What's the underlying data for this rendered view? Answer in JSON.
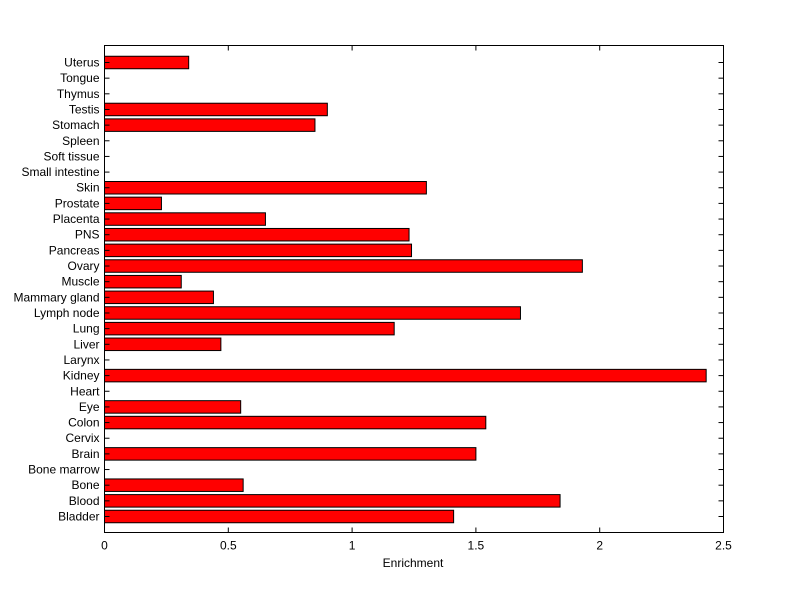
{
  "chart_data": {
    "type": "bar",
    "orientation": "horizontal",
    "categories": [
      "Bladder",
      "Blood",
      "Bone",
      "Bone marrow",
      "Brain",
      "Cervix",
      "Colon",
      "Eye",
      "Heart",
      "Kidney",
      "Larynx",
      "Liver",
      "Lung",
      "Lymph node",
      "Mammary gland",
      "Muscle",
      "Ovary",
      "Pancreas",
      "PNS",
      "Placenta",
      "Prostate",
      "Skin",
      "Small intestine",
      "Soft tissue",
      "Spleen",
      "Stomach",
      "Testis",
      "Thymus",
      "Tongue",
      "Uterus"
    ],
    "values": [
      1.41,
      1.84,
      0.56,
      0,
      1.5,
      0,
      1.54,
      0.55,
      0,
      2.43,
      0,
      0.47,
      1.17,
      1.68,
      0.44,
      0.31,
      1.93,
      1.24,
      1.23,
      0.65,
      0.23,
      1.3,
      0,
      0,
      0,
      0.85,
      0.9,
      0,
      0,
      0.34
    ],
    "xlabel": "Enrichment",
    "ylabel": "",
    "title": "",
    "xlim": [
      0,
      2.5
    ],
    "xticks": [
      0,
      0.5,
      1,
      1.5,
      2,
      2.5
    ],
    "xtick_labels": [
      "0",
      "0.5",
      "1",
      "1.5",
      "2",
      "2.5"
    ],
    "bar_color": "#ff0000",
    "bar_edge_color": "#000000",
    "grid": false,
    "legend": "none"
  }
}
